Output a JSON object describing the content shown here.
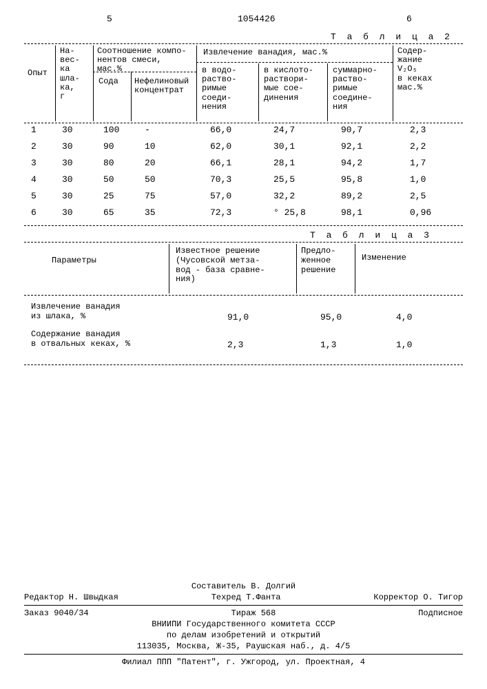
{
  "page": {
    "col_left": "5",
    "doc_number": "1054426",
    "col_right": "6"
  },
  "table2": {
    "label": "Т а б л и ц а 2",
    "headers": {
      "opyt": "Опыт",
      "naveska": "На-\nвес-\nка\nшла-\nка,\nг",
      "sootnoshenie": "Соотношение компо-\nнентов смеси,\nмас.%",
      "soda": "Сода",
      "nefelin": "Нефелиновый\nконцентрат",
      "izvlechenie": "Извлечение ванадия,  мас.%",
      "vodo": "в водо-\nраство-\nримые\nсоеди-\nнения",
      "kisloto": "в кислото-\nраствори-\nмые сое-\nдинения",
      "summarno": "суммарно-\nраство-\nримые\nсоедине-\nния",
      "soderzh": "Содер-\nжание\nV₂O₅\nв кеках\nмас.%"
    },
    "rows": [
      {
        "n": "1",
        "nav": "30",
        "soda": "100",
        "nef": "-",
        "v": "66,0",
        "k": "24,7",
        "s": "90,7",
        "o": "2,3"
      },
      {
        "n": "2",
        "nav": "30",
        "soda": "90",
        "nef": "10",
        "v": "62,0",
        "k": "30,1",
        "s": "92,1",
        "o": "2,2"
      },
      {
        "n": "3",
        "nav": "30",
        "soda": "80",
        "nef": "20",
        "v": "66,1",
        "k": "28,1",
        "s": "94,2",
        "o": "1,7"
      },
      {
        "n": "4",
        "nav": "30",
        "soda": "50",
        "nef": "50",
        "v": "70,3",
        "k": "25,5",
        "s": "95,8",
        "o": "1,0"
      },
      {
        "n": "5",
        "nav": "30",
        "soda": "25",
        "nef": "75",
        "v": "57,0",
        "k": "32,2",
        "s": "89,2",
        "o": "2,5"
      },
      {
        "n": "6",
        "nav": "30",
        "soda": "65",
        "nef": "35",
        "v": "72,3",
        "k": "° 25,8",
        "s": "98,1",
        "o": "0,96"
      }
    ]
  },
  "table3": {
    "label": "Т а б л и ц а  3",
    "headers": {
      "param": "Параметры",
      "izvestnoe": "Известное решение\n(Чусовской метза-\nвод - база сравне-\nния)",
      "predlozh": "Предло-\nженное\nрешение",
      "izmenenie": "Изменение"
    },
    "rows": [
      {
        "label": "Извлечение ванадия\nиз шлака, %",
        "v1": "91,0",
        "v2": "95,0",
        "v3": "4,0"
      },
      {
        "label": "Содержание ванадия\nв отвальных кеках, %",
        "v1": "2,3",
        "v2": "1,3",
        "v3": "1,0"
      }
    ]
  },
  "footer": {
    "sostavitel": "Составитель В. Долгий",
    "redaktor": "Редактор Н. Швыдкая",
    "tehred": "Техред Т.Фанта",
    "korrektor": "Корректор О. Тигор",
    "zakaz": "Заказ 9040/34",
    "tirazh": "Тираж  568",
    "podpisnoe": "Подписное",
    "org1": "ВНИИПИ Государственного комитета СССР",
    "org2": "по делам изобретений и открытий",
    "addr1": "113035, Москва, Ж-35, Раушская наб., д. 4/5",
    "filial": "Филиал ППП \"Патент\", г. Ужгород, ул. Проектная, 4"
  }
}
